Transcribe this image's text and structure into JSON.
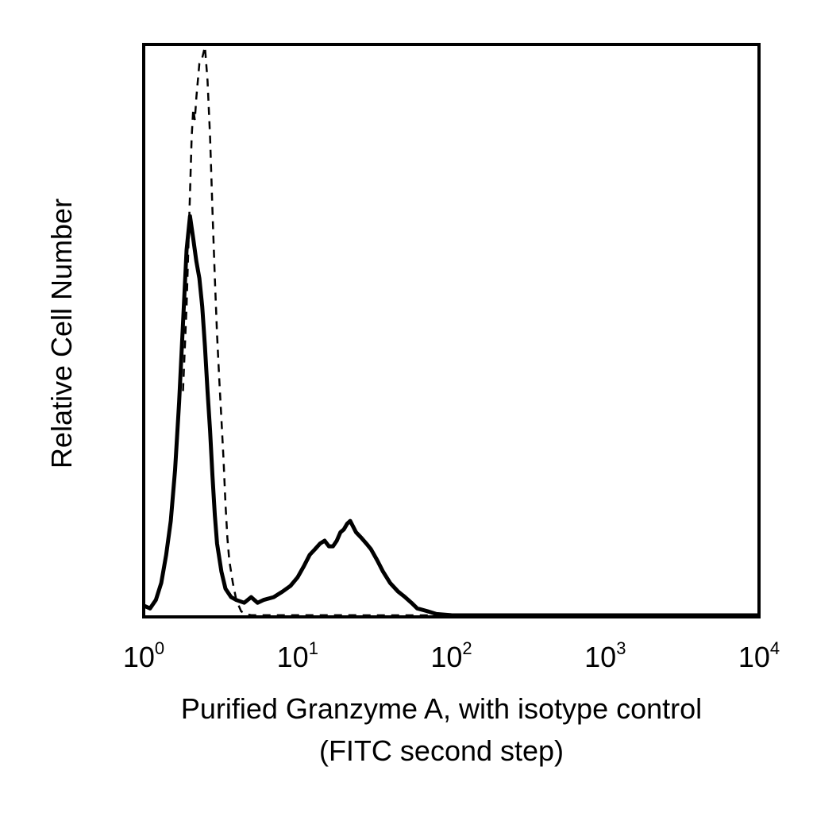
{
  "chart_data": {
    "type": "line",
    "title": "",
    "xlabel": "Purified Granzyme A, with isotype control",
    "xlabel_line2": "(FITC second step)",
    "ylabel": "Relative Cell Number",
    "x_scale": "log",
    "xlim": [
      1,
      10000
    ],
    "ylim": [
      0,
      100
    ],
    "grid": false,
    "legend": "none",
    "x_ticks": [
      {
        "value": 1,
        "base": "10",
        "exp": "0"
      },
      {
        "value": 10,
        "base": "10",
        "exp": "1"
      },
      {
        "value": 100,
        "base": "10",
        "exp": "2"
      },
      {
        "value": 1000,
        "base": "10",
        "exp": "3"
      },
      {
        "value": 10000,
        "base": "10",
        "exp": "4"
      }
    ],
    "series": [
      {
        "style": "solid",
        "color": "#000000",
        "points": [
          [
            1.0,
            2
          ],
          [
            1.1,
            1.5
          ],
          [
            1.2,
            3
          ],
          [
            1.3,
            6
          ],
          [
            1.4,
            11
          ],
          [
            1.5,
            17
          ],
          [
            1.6,
            26
          ],
          [
            1.7,
            38
          ],
          [
            1.8,
            52
          ],
          [
            1.9,
            65
          ],
          [
            2.0,
            71
          ],
          [
            2.1,
            67
          ],
          [
            2.2,
            63
          ],
          [
            2.3,
            60
          ],
          [
            2.4,
            55
          ],
          [
            2.5,
            48
          ],
          [
            2.6,
            40
          ],
          [
            2.7,
            33
          ],
          [
            2.8,
            25
          ],
          [
            2.9,
            18
          ],
          [
            3.0,
            13
          ],
          [
            3.2,
            8
          ],
          [
            3.4,
            5
          ],
          [
            3.7,
            3.5
          ],
          [
            4.0,
            3
          ],
          [
            4.5,
            2.5
          ],
          [
            5.0,
            3.5
          ],
          [
            5.5,
            2.5
          ],
          [
            6.0,
            3
          ],
          [
            7.0,
            3.5
          ],
          [
            8.0,
            4.5
          ],
          [
            9.0,
            5.5
          ],
          [
            10.0,
            7
          ],
          [
            11.0,
            9
          ],
          [
            12.0,
            11
          ],
          [
            13.0,
            12
          ],
          [
            14.0,
            13
          ],
          [
            15.0,
            13.5
          ],
          [
            16.0,
            12.5
          ],
          [
            17.0,
            12.5
          ],
          [
            18.0,
            13.5
          ],
          [
            19.0,
            15
          ],
          [
            20.0,
            15.5
          ],
          [
            21.0,
            16.5
          ],
          [
            22.0,
            17
          ],
          [
            24.0,
            15
          ],
          [
            26.0,
            14
          ],
          [
            28.0,
            13
          ],
          [
            30.0,
            12
          ],
          [
            33.0,
            10
          ],
          [
            36.0,
            8
          ],
          [
            40.0,
            6
          ],
          [
            45.0,
            4.5
          ],
          [
            50.0,
            3.5
          ],
          [
            55.0,
            2.5
          ],
          [
            60.0,
            1.5
          ],
          [
            70.0,
            1
          ],
          [
            80.0,
            0.5
          ],
          [
            100.0,
            0.3
          ],
          [
            150.0,
            0.2
          ],
          [
            200.0,
            0
          ],
          [
            10000.0,
            0
          ]
        ]
      },
      {
        "style": "dashed",
        "color": "#000000",
        "points": [
          [
            1.8,
            40
          ],
          [
            1.9,
            55
          ],
          [
            2.0,
            75
          ],
          [
            2.05,
            85
          ],
          [
            2.1,
            90
          ],
          [
            2.15,
            88
          ],
          [
            2.2,
            92
          ],
          [
            2.3,
            98
          ],
          [
            2.4,
            99
          ],
          [
            2.5,
            101
          ],
          [
            2.6,
            95
          ],
          [
            2.7,
            85
          ],
          [
            2.8,
            72
          ],
          [
            2.9,
            60
          ],
          [
            3.0,
            50
          ],
          [
            3.1,
            42
          ],
          [
            3.2,
            35
          ],
          [
            3.3,
            28
          ],
          [
            3.4,
            20
          ],
          [
            3.5,
            14
          ],
          [
            3.6,
            10
          ],
          [
            3.8,
            6
          ],
          [
            4.0,
            3
          ],
          [
            4.3,
            1
          ],
          [
            4.6,
            0.5
          ],
          [
            5.0,
            0.3
          ],
          [
            10.0,
            0.3
          ],
          [
            20.0,
            0.3
          ],
          [
            40.0,
            0.2
          ],
          [
            60.0,
            0.2
          ],
          [
            100.0,
            0
          ]
        ]
      }
    ]
  }
}
